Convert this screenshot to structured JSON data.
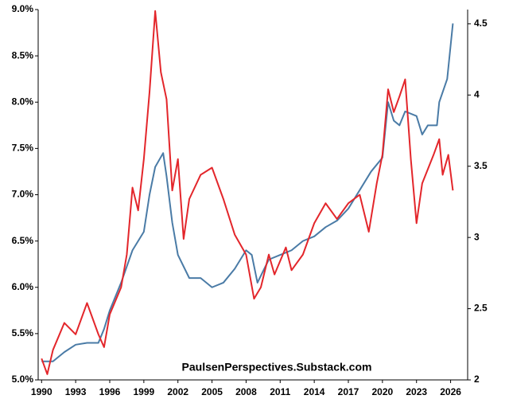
{
  "chart_data": {
    "type": "line",
    "annotation": "PaulsenPerspectives.Substack.com",
    "xlim": [
      1989.7,
      2027.5
    ],
    "xticks": [
      1990,
      1993,
      1996,
      1999,
      2002,
      2005,
      2008,
      2011,
      2014,
      2017,
      2020,
      2023,
      2026
    ],
    "ylim": [
      5.0,
      9.0
    ],
    "yticks": [
      {
        "value": 5.0,
        "label": "5.0%"
      },
      {
        "value": 5.5,
        "label": "5.5%"
      },
      {
        "value": 6.0,
        "label": "6.0%"
      },
      {
        "value": 6.5,
        "label": "6.5%"
      },
      {
        "value": 7.0,
        "label": "7.0%"
      },
      {
        "value": 7.5,
        "label": "7.5%"
      },
      {
        "value": 8.0,
        "label": "8.0%"
      },
      {
        "value": 8.5,
        "label": "8.5%"
      },
      {
        "value": 9.0,
        "label": "9.0%"
      }
    ],
    "y2lim": [
      2,
      4.6
    ],
    "y2ticks": [
      2,
      2.5,
      3,
      3.5,
      4,
      4.5
    ],
    "grid": false,
    "series": [
      {
        "color": "#4a7ba6",
        "axis": "y",
        "x": [
          1990,
          1991,
          1992,
          1993,
          1994,
          1995,
          1995.5,
          1996,
          1997,
          1998,
          1999,
          1999.5,
          2000,
          2000.7,
          2001,
          2001.5,
          2002,
          2003,
          2004,
          2005,
          2006,
          2007,
          2008,
          2008.5,
          2009,
          2010,
          2011,
          2012,
          2013,
          2014,
          2015,
          2016,
          2017,
          2018,
          2019,
          2020,
          2020.5,
          2021,
          2021.5,
          2022,
          2023,
          2023.5,
          2024,
          2024.8,
          2025,
          2025.7,
          2026.2
        ],
        "values": [
          5.2,
          5.2,
          5.3,
          5.38,
          5.4,
          5.4,
          5.55,
          5.75,
          6.05,
          6.4,
          6.6,
          7.0,
          7.3,
          7.45,
          7.2,
          6.7,
          6.35,
          6.1,
          6.1,
          6.0,
          6.05,
          6.2,
          6.4,
          6.35,
          6.05,
          6.3,
          6.35,
          6.4,
          6.5,
          6.55,
          6.65,
          6.72,
          6.85,
          7.05,
          7.25,
          7.4,
          8.0,
          7.8,
          7.75,
          7.9,
          7.85,
          7.65,
          7.75,
          7.75,
          8.0,
          8.25,
          8.85
        ]
      },
      {
        "color": "#e3262b",
        "axis": "y2",
        "x": [
          1990,
          1990.5,
          1991,
          1992,
          1993,
          1994,
          1995,
          1995.5,
          1996,
          1997,
          1997.5,
          1998,
          1998.5,
          1999,
          1999.5,
          2000,
          2000.5,
          2001,
          2001.5,
          2002,
          2002.5,
          2003,
          2004,
          2005,
          2006,
          2007,
          2008,
          2008.7,
          2009.3,
          2010,
          2010.5,
          2011.5,
          2012,
          2013,
          2014,
          2015,
          2016,
          2017,
          2018,
          2018.8,
          2019.5,
          2020,
          2020.5,
          2021,
          2021.5,
          2022,
          2022.5,
          2023,
          2023.5,
          2024.5,
          2025,
          2025.3,
          2025.8,
          2026.2
        ],
        "values": [
          2.15,
          2.04,
          2.21,
          2.4,
          2.32,
          2.54,
          2.32,
          2.23,
          2.46,
          2.65,
          2.88,
          3.35,
          3.19,
          3.55,
          4.02,
          4.59,
          4.16,
          3.97,
          3.33,
          3.55,
          2.99,
          3.27,
          3.44,
          3.49,
          3.27,
          3.02,
          2.88,
          2.57,
          2.65,
          2.88,
          2.74,
          2.93,
          2.77,
          2.88,
          3.1,
          3.24,
          3.13,
          3.24,
          3.3,
          3.04,
          3.38,
          3.58,
          4.04,
          3.88,
          3.99,
          4.11,
          3.55,
          3.1,
          3.38,
          3.58,
          3.69,
          3.44,
          3.58,
          3.33
        ]
      }
    ]
  }
}
